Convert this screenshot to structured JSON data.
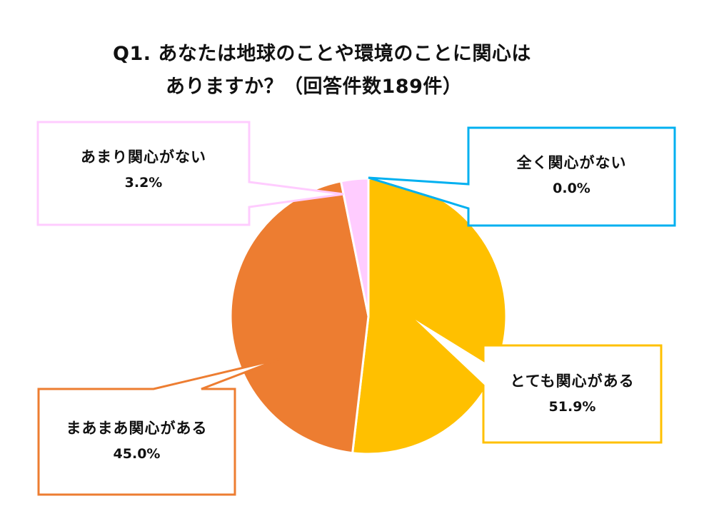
{
  "title": {
    "line1": "Q1. あなたは地球のことや環境のことに関心は",
    "line2": "ありますか？（回答件数189件）"
  },
  "chart_data": {
    "type": "pie",
    "title": "Q1. あなたは地球のことや環境のことに関心はありますか？（回答件数189件）",
    "total_responses": 189,
    "start_angle": "12 o'clock, clockwise",
    "categories": [
      "とても関心がある",
      "まあまあ関心がある",
      "あまり関心がない",
      "全く関心がない"
    ],
    "values": [
      51.9,
      45.0,
      3.2,
      0.0
    ],
    "unit": "%",
    "colors": [
      "#FFC000",
      "#ED7D31",
      "#FFCCFF",
      "#00B0F0"
    ],
    "labels": [
      {
        "label": "とても関心がある",
        "value": "51.9%"
      },
      {
        "label": "まあまあ関心がある",
        "value": "45.0%"
      },
      {
        "label": "あまり関心がない",
        "value": "3.2%"
      },
      {
        "label": "全く関心がない",
        "value": "0.0%"
      }
    ],
    "legend": "callout labels (no separate legend)"
  },
  "callouts": {
    "very": {
      "label": "とても関心がある",
      "value": "51.9%",
      "color": "#FFC000"
    },
    "somewhat": {
      "label": "まあまあ関心がある",
      "value": "45.0%",
      "color": "#ED7D31"
    },
    "little": {
      "label": "あまり関心がない",
      "value": "3.2%",
      "color": "#FFCCFF"
    },
    "none": {
      "label": "全く関心がない",
      "value": "0.0%",
      "color": "#00B0F0"
    }
  }
}
